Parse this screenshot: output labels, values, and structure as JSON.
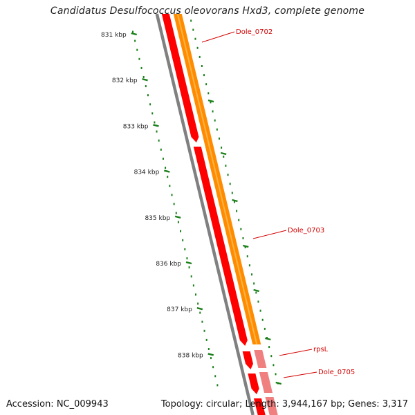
{
  "title": "Candidatus Desulfococcus oleovorans Hxd3, complete genome",
  "scale_ticks": [
    {
      "label": "831 kbp"
    },
    {
      "label": "832 kbp"
    },
    {
      "label": "833 kbp"
    },
    {
      "label": "834 kbp"
    },
    {
      "label": "835 kbp"
    },
    {
      "label": "836 kbp"
    },
    {
      "label": "837 kbp"
    },
    {
      "label": "838 kbp"
    }
  ],
  "genes": [
    {
      "name": "Dole_0702",
      "color": "#ff8c00",
      "track": "forward"
    },
    {
      "name": "Dole_0703",
      "color": "#ff8c00",
      "track": "forward"
    },
    {
      "name": "rpsL",
      "color": "#f08080",
      "track": "forward"
    },
    {
      "name": "Dole_0705",
      "color": "#f08080",
      "track": "forward"
    }
  ],
  "colors": {
    "reverse_cds": "#ff0000",
    "forward_cds": "#ff8c00",
    "forward_cds_light": "#f08080",
    "backbone": "#808080",
    "scale": "#1a7f1a",
    "label": "#d40000"
  },
  "footer": {
    "accession": "Accession: NC_009943",
    "summary": "Topology: circular; Length: 3,944,167 bp; Genes: 3,317"
  }
}
